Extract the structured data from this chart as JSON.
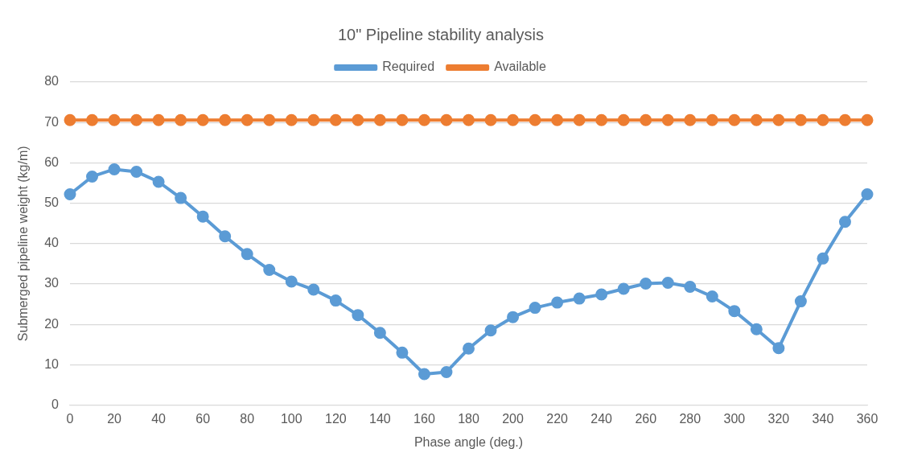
{
  "chart_data": {
    "type": "line",
    "title": "10\" Pipeline stability analysis",
    "xlabel": "Phase angle (deg.)",
    "ylabel": "Submerged pipeline weight (kg/m)",
    "categories": [
      "0",
      null,
      "20",
      null,
      "40",
      null,
      "60",
      null,
      "80",
      null,
      "100",
      null,
      "120",
      null,
      "140",
      null,
      "160",
      null,
      "180",
      null,
      "200",
      null,
      "220",
      null,
      "240",
      null,
      "260",
      null,
      "280",
      null,
      "300",
      null,
      "320",
      null,
      "340",
      null,
      "360"
    ],
    "series": [
      {
        "name": "Required",
        "color": "#5b9bd5",
        "values": [
          52.2,
          56.6,
          58.4,
          57.8,
          55.3,
          51.3,
          46.7,
          41.8,
          37.4,
          33.5,
          30.6,
          28.6,
          25.9,
          22.3,
          17.9,
          13.0,
          7.7,
          8.2,
          14.0,
          18.5,
          21.8,
          24.1,
          25.4,
          26.4,
          27.4,
          28.8,
          30.1,
          30.3,
          29.3,
          26.9,
          23.3,
          18.8,
          14.1,
          25.7,
          36.3,
          45.4,
          52.2
        ]
      },
      {
        "name": "Available",
        "color": "#ed7d31",
        "values": [
          70.6,
          70.6,
          70.6,
          70.6,
          70.6,
          70.6,
          70.6,
          70.6,
          70.6,
          70.6,
          70.6,
          70.6,
          70.6,
          70.6,
          70.6,
          70.6,
          70.6,
          70.6,
          70.6,
          70.6,
          70.6,
          70.6,
          70.6,
          70.6,
          70.6,
          70.6,
          70.6,
          70.6,
          70.6,
          70.6,
          70.6,
          70.6,
          70.6,
          70.6,
          70.6,
          70.6,
          70.6
        ]
      }
    ],
    "ylim": [
      0,
      80
    ],
    "yticks": [
      0,
      10,
      20,
      30,
      40,
      50,
      60,
      70,
      80
    ],
    "grid": "y",
    "legend": "top",
    "marker": "circle",
    "line_style": "solid"
  }
}
